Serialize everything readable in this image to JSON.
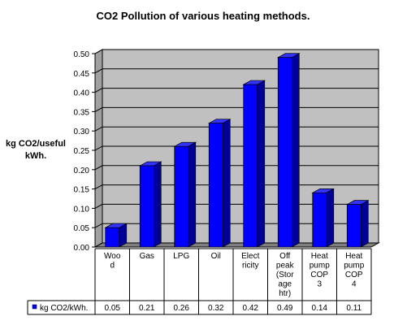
{
  "chart_data": {
    "type": "bar",
    "title": "CO2 Pollution of various heating methods.",
    "ylabel_lines": [
      "kg CO2/useful",
      "kWh."
    ],
    "ylim": [
      0,
      0.5
    ],
    "yticks": [
      "0.00",
      "0.05",
      "0.10",
      "0.15",
      "0.20",
      "0.25",
      "0.30",
      "0.35",
      "0.40",
      "0.45",
      "0.50"
    ],
    "grid": true,
    "categories": [
      [
        "Woo",
        "d"
      ],
      [
        "Gas"
      ],
      [
        "LPG"
      ],
      [
        "Oil"
      ],
      [
        "Elect",
        "ricity"
      ],
      [
        "Off",
        "peak",
        "(Stor",
        "age",
        "htr)"
      ],
      [
        "Heat",
        "pump",
        "COP",
        "3"
      ],
      [
        "Heat",
        "pump",
        "COP",
        "4"
      ]
    ],
    "series": [
      {
        "name": "kg CO2/kWh.",
        "values": [
          0.05,
          0.21,
          0.26,
          0.32,
          0.42,
          0.49,
          0.14,
          0.11
        ],
        "value_labels": [
          "0.05",
          "0.21",
          "0.26",
          "0.32",
          "0.42",
          "0.49",
          "0.14",
          "0.11"
        ]
      }
    ],
    "legend": "data-table",
    "colors": {
      "bar_front": "#0000ff",
      "bar_side": "#000099",
      "bar_top": "#3333ff",
      "plot_wall": "#c0c0c0",
      "plot_floor": "#808080"
    }
  }
}
